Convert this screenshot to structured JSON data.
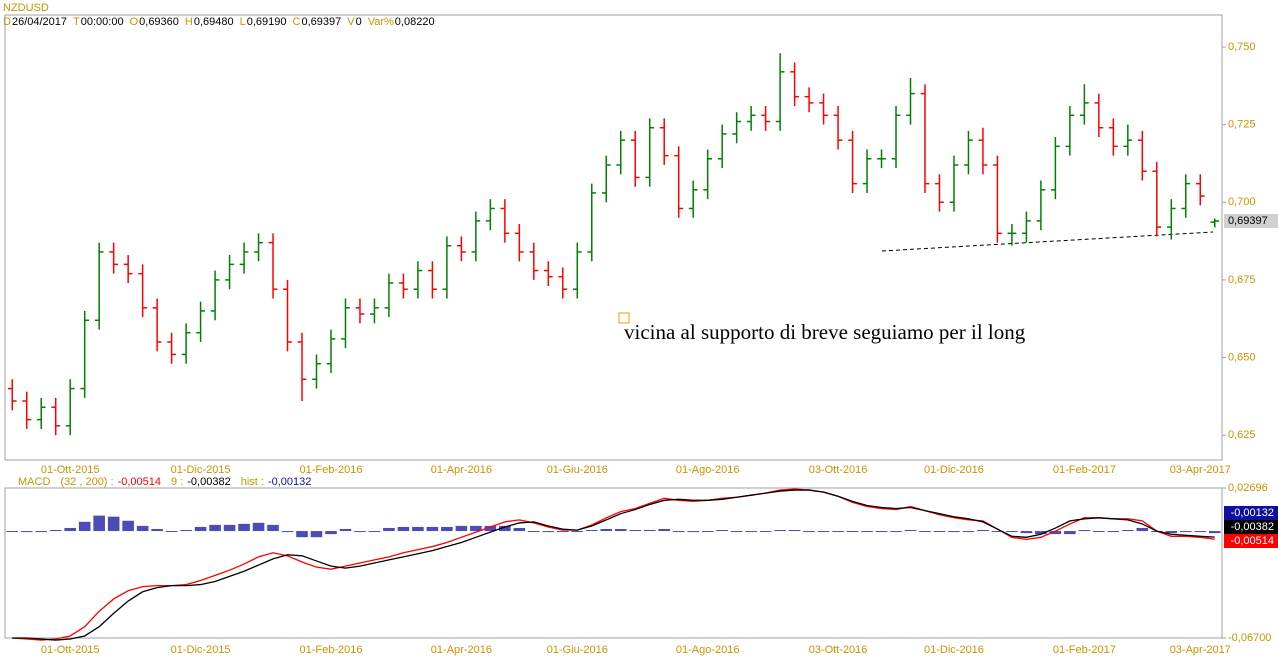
{
  "header": {
    "symbol": "NZDUSD",
    "fields": [
      {
        "key": "D",
        "text": "26/04/2017"
      },
      {
        "key": "T",
        "text": "00:00:00"
      },
      {
        "key": "O",
        "text": "0,69360"
      },
      {
        "key": "H",
        "text": "0,69480"
      },
      {
        "key": "L",
        "text": "0,69190"
      },
      {
        "key": "C",
        "text": "0,69397"
      },
      {
        "key": "V",
        "text": "0"
      },
      {
        "key": "Var%",
        "text": "0,08220"
      }
    ]
  },
  "chart_data": [
    {
      "type": "ohlc",
      "categories": [
        null,
        null,
        null,
        null,
        "01-Ott-2015",
        null,
        null,
        null,
        null,
        null,
        null,
        null,
        null,
        "01-Dic-2015",
        null,
        null,
        null,
        null,
        null,
        null,
        null,
        null,
        "01-Feb-2016",
        null,
        null,
        null,
        null,
        null,
        null,
        null,
        null,
        "01-Apr-2016",
        null,
        null,
        null,
        null,
        null,
        null,
        null,
        "01-Giu-2016",
        null,
        null,
        null,
        null,
        null,
        null,
        null,
        null,
        "01-Ago-2016",
        null,
        null,
        null,
        null,
        null,
        null,
        null,
        null,
        "03-Ott-2016",
        null,
        null,
        null,
        null,
        null,
        null,
        null,
        "01-Dic-2016",
        null,
        null,
        null,
        null,
        null,
        null,
        null,
        null,
        "01-Feb-2017",
        null,
        null,
        null,
        null,
        null,
        null,
        null,
        "03-Apr-2017",
        null
      ],
      "open": [
        0.64,
        0.636,
        0.63,
        0.634,
        0.628,
        0.64,
        0.662,
        0.684,
        0.68,
        0.677,
        0.666,
        0.655,
        0.651,
        0.658,
        0.665,
        0.675,
        0.68,
        0.684,
        0.687,
        0.672,
        0.655,
        0.643,
        0.648,
        0.656,
        0.666,
        0.664,
        0.666,
        0.674,
        0.672,
        0.678,
        0.672,
        0.686,
        0.684,
        0.694,
        0.698,
        0.69,
        0.684,
        0.678,
        0.676,
        0.672,
        0.684,
        0.703,
        0.712,
        0.72,
        0.708,
        0.724,
        0.715,
        0.698,
        0.704,
        0.714,
        0.722,
        0.726,
        0.728,
        0.726,
        0.742,
        0.734,
        0.732,
        0.728,
        0.72,
        0.706,
        0.714,
        0.714,
        0.728,
        0.735,
        0.706,
        0.7,
        0.712,
        0.72,
        0.712,
        0.69,
        0.69,
        0.694,
        0.704,
        0.718,
        0.728,
        0.732,
        0.724,
        0.718,
        0.72,
        0.71,
        0.692,
        0.698,
        0.706,
        0.6936
      ],
      "high": [
        0.643,
        0.639,
        0.637,
        0.637,
        0.643,
        0.665,
        0.687,
        0.687,
        0.683,
        0.68,
        0.669,
        0.658,
        0.661,
        0.668,
        0.678,
        0.683,
        0.687,
        0.69,
        0.69,
        0.675,
        0.658,
        0.651,
        0.659,
        0.669,
        0.669,
        0.669,
        0.677,
        0.677,
        0.681,
        0.681,
        0.689,
        0.689,
        0.697,
        0.701,
        0.701,
        0.693,
        0.687,
        0.681,
        0.679,
        0.687,
        0.706,
        0.715,
        0.723,
        0.723,
        0.727,
        0.727,
        0.718,
        0.707,
        0.717,
        0.725,
        0.729,
        0.731,
        0.731,
        0.748,
        0.745,
        0.737,
        0.735,
        0.731,
        0.723,
        0.717,
        0.717,
        0.731,
        0.74,
        0.738,
        0.709,
        0.715,
        0.723,
        0.724,
        0.715,
        0.693,
        0.697,
        0.707,
        0.721,
        0.731,
        0.738,
        0.735,
        0.727,
        0.725,
        0.723,
        0.713,
        0.701,
        0.709,
        0.709,
        0.6948
      ],
      "low": [
        0.633,
        0.627,
        0.627,
        0.625,
        0.625,
        0.637,
        0.659,
        0.677,
        0.674,
        0.663,
        0.652,
        0.648,
        0.648,
        0.655,
        0.662,
        0.672,
        0.677,
        0.681,
        0.669,
        0.652,
        0.636,
        0.64,
        0.645,
        0.653,
        0.661,
        0.661,
        0.663,
        0.669,
        0.669,
        0.669,
        0.669,
        0.681,
        0.681,
        0.691,
        0.687,
        0.681,
        0.675,
        0.673,
        0.669,
        0.669,
        0.681,
        0.7,
        0.709,
        0.705,
        0.705,
        0.712,
        0.695,
        0.695,
        0.701,
        0.711,
        0.719,
        0.723,
        0.723,
        0.723,
        0.731,
        0.729,
        0.725,
        0.717,
        0.703,
        0.703,
        0.711,
        0.711,
        0.725,
        0.703,
        0.697,
        0.697,
        0.709,
        0.709,
        0.687,
        0.686,
        0.687,
        0.691,
        0.701,
        0.715,
        0.725,
        0.721,
        0.715,
        0.715,
        0.707,
        0.689,
        0.688,
        0.695,
        0.699,
        0.6919
      ],
      "close": [
        0.636,
        0.63,
        0.634,
        0.628,
        0.64,
        0.662,
        0.684,
        0.68,
        0.677,
        0.666,
        0.655,
        0.651,
        0.658,
        0.665,
        0.675,
        0.68,
        0.684,
        0.687,
        0.672,
        0.655,
        0.643,
        0.648,
        0.656,
        0.666,
        0.664,
        0.666,
        0.674,
        0.672,
        0.678,
        0.672,
        0.686,
        0.684,
        0.694,
        0.698,
        0.69,
        0.684,
        0.678,
        0.676,
        0.672,
        0.684,
        0.703,
        0.712,
        0.72,
        0.708,
        0.724,
        0.715,
        0.698,
        0.704,
        0.714,
        0.722,
        0.726,
        0.728,
        0.726,
        0.742,
        0.734,
        0.732,
        0.728,
        0.72,
        0.706,
        0.714,
        0.714,
        0.728,
        0.735,
        0.706,
        0.7,
        0.712,
        0.72,
        0.712,
        0.69,
        0.69,
        0.694,
        0.704,
        0.718,
        0.728,
        0.732,
        0.724,
        0.718,
        0.72,
        0.71,
        0.692,
        0.698,
        0.706,
        0.702,
        0.69397
      ],
      "last_label": "0,69397",
      "up_color": "#008000",
      "down_color": "#ff0000",
      "ylim": [
        0.617,
        0.7603
      ],
      "yticks": [
        {
          "value": 0.625,
          "label": "0,625"
        },
        {
          "value": 0.65,
          "label": "0,650"
        },
        {
          "value": 0.675,
          "label": "0,675"
        },
        {
          "value": 0.7,
          "label": "0,700"
        },
        {
          "value": 0.725,
          "label": "0,725"
        },
        {
          "value": 0.75,
          "label": "0,750"
        }
      ],
      "annotation": "vicina al supporto di breve seguiamo per il long"
    },
    {
      "type": "macd",
      "title": "MACD",
      "ylim": [
        -0.067,
        0.02696
      ],
      "yticks": [
        {
          "value": -0.067,
          "label": "-0,06700"
        },
        {
          "value": 0.02696,
          "label": "0,02696"
        }
      ],
      "series": [
        {
          "name": "(32 , 200) :",
          "color": "#ff0000",
          "last_label": "-0,00514",
          "values": [
            -0.067,
            -0.06765,
            -0.06829,
            -0.06765,
            -0.06572,
            -0.05993,
            -0.05027,
            -0.04255,
            -0.0374,
            -0.03483,
            -0.03418,
            -0.03418,
            -0.03354,
            -0.03096,
            -0.02775,
            -0.02453,
            -0.02067,
            -0.01616,
            -0.01359,
            -0.01552,
            -0.01938,
            -0.0226,
            -0.02388,
            -0.02195,
            -0.02002,
            -0.01809,
            -0.01616,
            -0.01359,
            -0.01166,
            -0.00972,
            -0.00715,
            -0.00393,
            -0.00071,
            0.0025,
            0.00572,
            0.00701,
            0.00508,
            0.0025,
            0.00057,
            0.00057,
            0.00379,
            0.0083,
            0.01216,
            0.01409,
            0.01731,
            0.02052,
            0.01924,
            0.01859,
            0.01924,
            0.02052,
            0.02117,
            0.02246,
            0.02374,
            0.02567,
            0.02632,
            0.02567,
            0.02439,
            0.02181,
            0.01795,
            0.01538,
            0.01409,
            0.01345,
            0.01538,
            0.0128,
            0.01023,
            0.0083,
            0.00701,
            0.00637,
            0.00122,
            -0.00393,
            -0.00522,
            -0.00393,
            -7e-05,
            0.00444,
            0.0083,
            0.0083,
            0.00765,
            0.00765,
            0.00637,
            -7e-05,
            -0.00329,
            -0.00329,
            -0.00393,
            -0.00514
          ]
        },
        {
          "name": "9 :",
          "color": "#000000",
          "last_label": "-0,00382",
          "values": [
            -0.067,
            -0.067,
            -0.06765,
            -0.06829,
            -0.06765,
            -0.06572,
            -0.05993,
            -0.05156,
            -0.04384,
            -0.03804,
            -0.03547,
            -0.03418,
            -0.03418,
            -0.03354,
            -0.03161,
            -0.02839,
            -0.02517,
            -0.02131,
            -0.01745,
            -0.01487,
            -0.01552,
            -0.01873,
            -0.02195,
            -0.02324,
            -0.02195,
            -0.02002,
            -0.01809,
            -0.01616,
            -0.01423,
            -0.0123,
            -0.00972,
            -0.00715,
            -0.00393,
            -0.00071,
            0.0025,
            0.00508,
            0.00572,
            0.00315,
            0.00122,
            0.00057,
            0.00315,
            0.00701,
            0.01087,
            0.01345,
            0.01666,
            0.01924,
            0.01988,
            0.01924,
            0.01924,
            0.01988,
            0.02117,
            0.02246,
            0.02374,
            0.02503,
            0.02567,
            0.02567,
            0.02439,
            0.02181,
            0.01859,
            0.01602,
            0.01473,
            0.01409,
            0.01473,
            0.0128,
            0.01087,
            0.00894,
            0.00765,
            0.00572,
            0.00122,
            -0.00329,
            -0.00393,
            -0.002,
            0.00186,
            0.00637,
            0.00765,
            0.0083,
            0.00765,
            0.00701,
            0.00444,
            -7e-05,
            -0.002,
            -0.00264,
            -0.00329,
            -0.00382
          ]
        },
        {
          "name": "hist :",
          "color": "#1010a0",
          "last_label": "-0,00132",
          "values": [
            0,
            -0.00065,
            -0.00064,
            0.00064,
            0.00193,
            0.00579,
            0.00966,
            0.00901,
            0.00644,
            0.00321,
            0.00129,
            0,
            0.00064,
            0.00258,
            0.00386,
            0.00386,
            0.0045,
            0.00515,
            0.00386,
            -0.00065,
            -0.00386,
            -0.00387,
            -0.00193,
            0.00129,
            0,
            0,
            0.00193,
            0.00257,
            0.00257,
            0.00258,
            0.00257,
            0.00322,
            0.00322,
            0.00321,
            0.00322,
            0.00193,
            -0.00064,
            -0.00065,
            -0.00065,
            0,
            0.00064,
            0.00129,
            0.00129,
            0.00064,
            0.00065,
            0.00128,
            -0.00064,
            -0.00065,
            0,
            0.00064,
            0,
            0,
            0,
            0.00064,
            0.00065,
            0,
            0,
            0,
            -0.00064,
            -0.00064,
            -0.00064,
            -0.00064,
            0.00065,
            0,
            -0.00064,
            -0.00064,
            -0.00064,
            0.00065,
            0,
            -0.00064,
            -0.00129,
            -0.00193,
            -0.00193,
            -0.00193,
            0.00065,
            0,
            0,
            0.00064,
            0.00193,
            0,
            -0.00129,
            -0.00065,
            -0.00064,
            -0.00132
          ]
        }
      ]
    }
  ]
}
